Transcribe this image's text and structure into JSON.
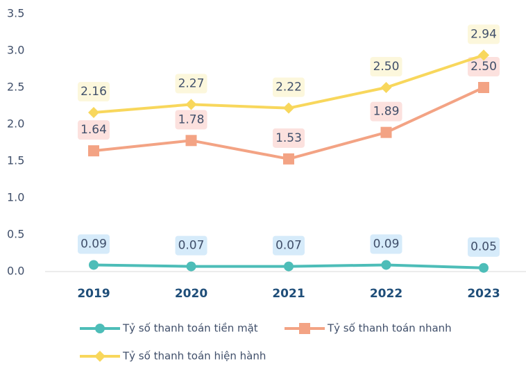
{
  "chart_data": {
    "type": "line",
    "categories": [
      "2019",
      "2020",
      "2021",
      "2022",
      "2023"
    ],
    "series": [
      {
        "name": "Tỷ số thanh toán tiền mặt",
        "color": "#4dbdb8",
        "marker": "circle",
        "label_bg": "#d6ebfa",
        "values": [
          0.09,
          0.07,
          0.07,
          0.09,
          0.05
        ],
        "value_labels": [
          "0.09",
          "0.07",
          "0.07",
          "0.09",
          "0.05"
        ]
      },
      {
        "name": "Tỷ số thanh toán nhanh",
        "color": "#f3a384",
        "marker": "square",
        "label_bg": "#fce1de",
        "values": [
          1.64,
          1.78,
          1.53,
          1.89,
          2.5
        ],
        "value_labels": [
          "1.64",
          "1.78",
          "1.53",
          "1.89",
          "2.50"
        ]
      },
      {
        "name": "Tỷ số thanh toán hiện hành",
        "color": "#f8d75c",
        "marker": "diamond",
        "label_bg": "#fcf7dc",
        "values": [
          2.16,
          2.27,
          2.22,
          2.5,
          2.94
        ],
        "value_labels": [
          "2.16",
          "2.27",
          "2.22",
          "2.50",
          "2.94"
        ]
      }
    ],
    "ylim": [
      0,
      3.5
    ],
    "yticks": [
      {
        "value": 0,
        "label": "0.0"
      },
      0.5,
      {
        "value": 1,
        "label": "1.0"
      },
      1.5,
      {
        "value": 2,
        "label": "2.0"
      },
      2.5,
      {
        "value": 3,
        "label": "3.0"
      },
      3.5
    ],
    "grid": false
  }
}
